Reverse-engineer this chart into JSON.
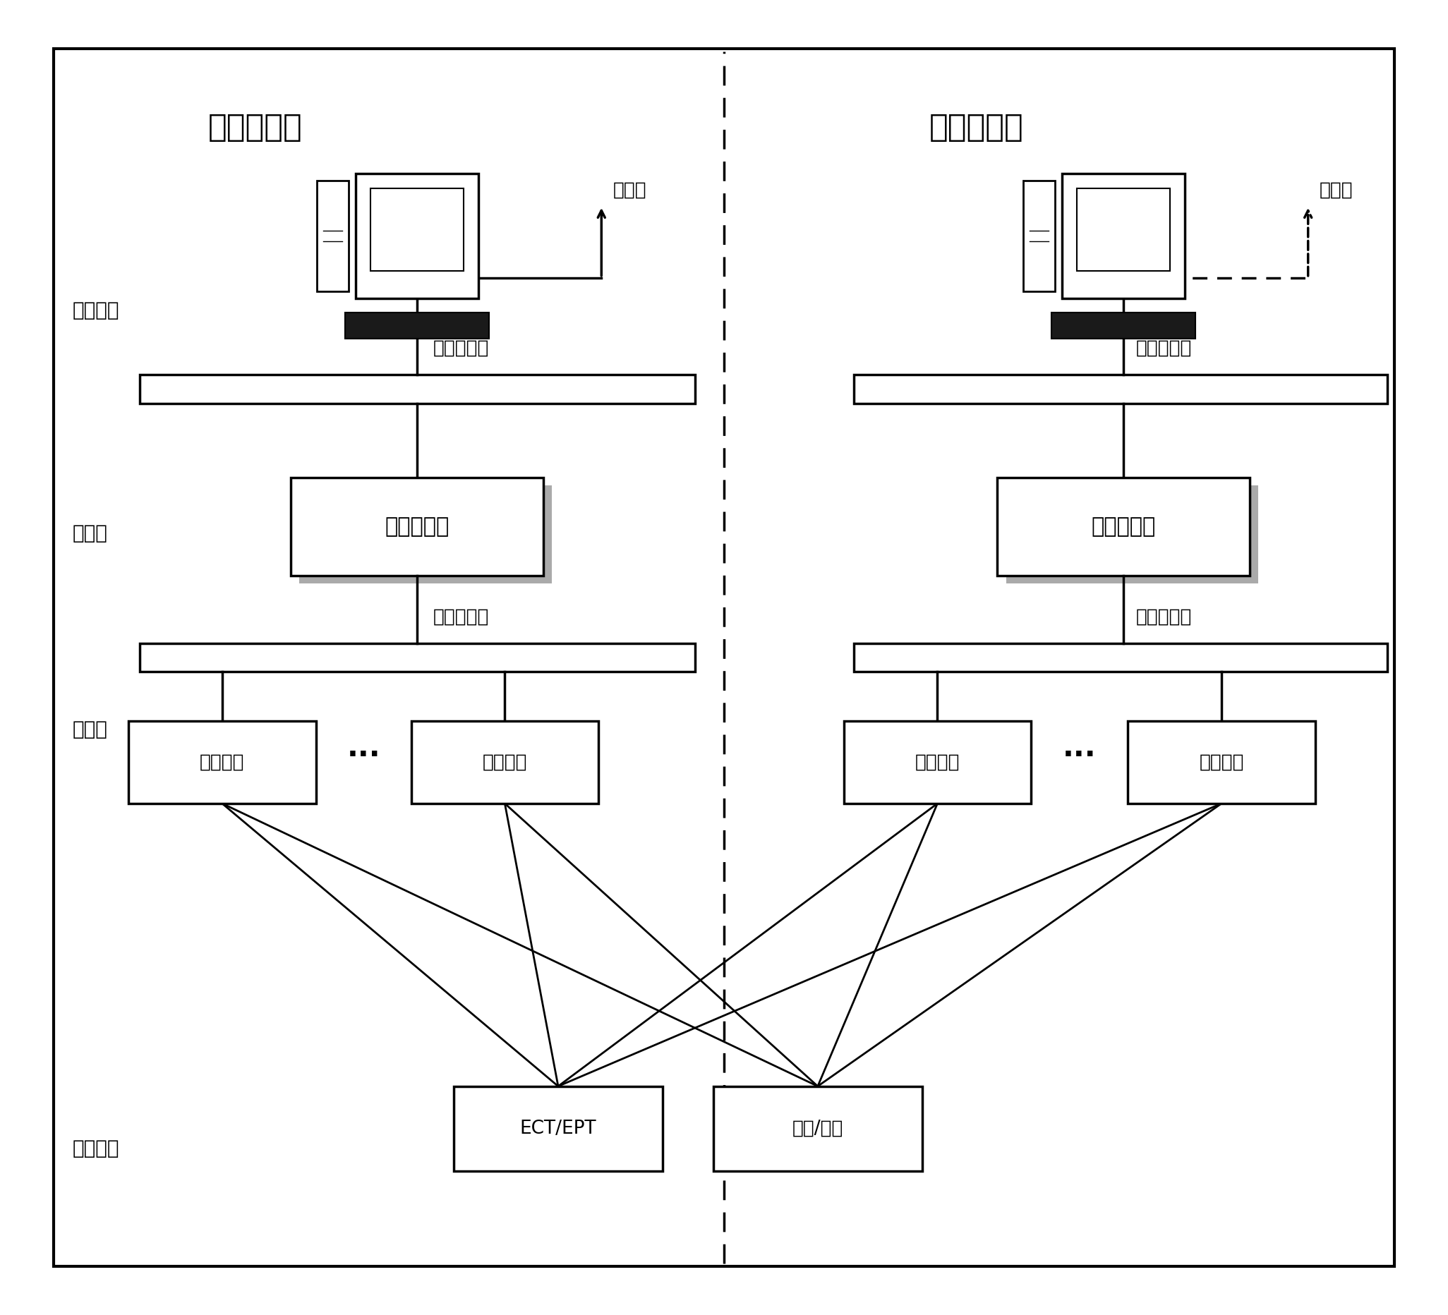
{
  "bg_color": "#ffffff",
  "left_title": "系统（主）",
  "right_title": "系统（备）",
  "label_biandian": "变电站层",
  "label_jiange": "间隔层",
  "label_guocheng": "过程层",
  "label_yici": "一次设备",
  "label_guangxian": "光纤以太网",
  "label_zhongduan": "智能终端",
  "label_kongzhi": "系统控制器",
  "label_ect": "ECT/EPT",
  "label_kaiguan": "开关/刀闸",
  "label_zhidiaodu": "至调度",
  "label_dots": "……",
  "font_size_title": 32,
  "font_size_layer": 20,
  "font_size_box": 22,
  "font_size_small": 19,
  "font_size_label": 19
}
